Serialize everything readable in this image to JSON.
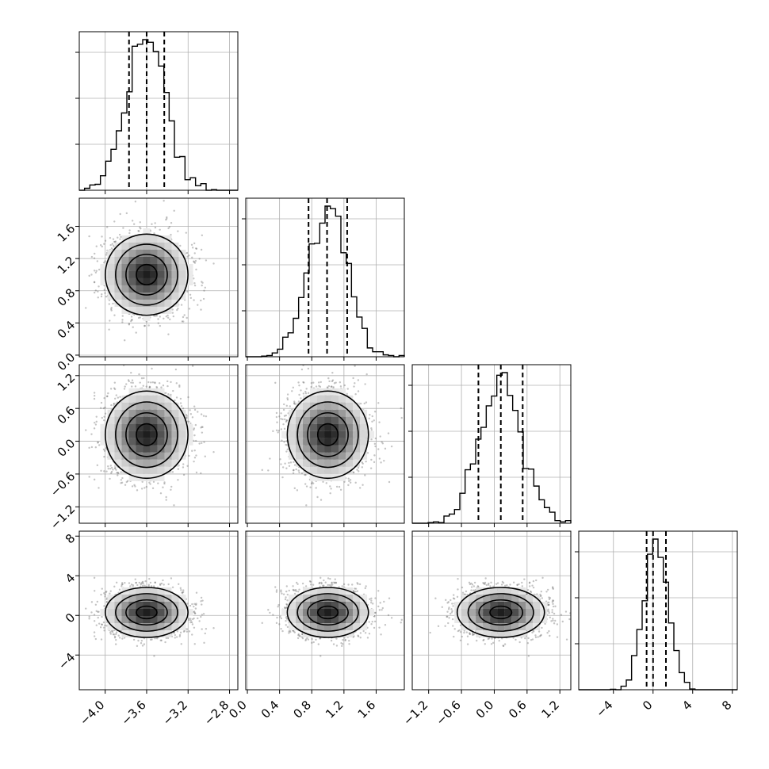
{
  "chart_data": {
    "type": "corner",
    "title": "",
    "parameters": [
      {
        "range": [
          -4.25,
          -2.72
        ],
        "ticks": [
          "−4.0",
          "−3.6",
          "−3.2",
          "−2.8"
        ],
        "tick_values": [
          -4.0,
          -3.6,
          -3.2,
          -2.8
        ],
        "mean": -3.6,
        "std": 0.19,
        "quantiles": [
          -3.77,
          -3.6,
          -3.43
        ]
      },
      {
        "range": [
          -0.02,
          1.95
        ],
        "ticks": [
          "0.0",
          "0.4",
          "0.8",
          "1.2",
          "1.6"
        ],
        "tick_values": [
          0.0,
          0.4,
          0.8,
          1.2,
          1.6
        ],
        "mean": 1.0,
        "std": 0.24,
        "quantiles": [
          0.76,
          0.99,
          1.24
        ]
      },
      {
        "range": [
          -1.5,
          1.4
        ],
        "ticks": [
          "−1.2",
          "−0.6",
          "0.0",
          "0.6",
          "1.2"
        ],
        "tick_values": [
          -1.2,
          -0.6,
          0.0,
          0.6,
          1.2
        ],
        "mean": 0.12,
        "std": 0.38,
        "quantiles": [
          -0.29,
          0.12,
          0.52
        ]
      },
      {
        "range": [
          -7.5,
          8.5
        ],
        "ticks": [
          "−4",
          "0",
          "4",
          "8"
        ],
        "tick_values": [
          -4,
          0,
          4,
          8
        ],
        "mean": 0.3,
        "std": 1.2,
        "quantiles": [
          -0.65,
          0.0,
          1.3
        ]
      }
    ],
    "contour_levels_sigma": [
      0.5,
      1.0,
      1.5,
      2.0
    ],
    "scatter_color": "#555555",
    "histogram_color": "#000000",
    "grid": true
  }
}
